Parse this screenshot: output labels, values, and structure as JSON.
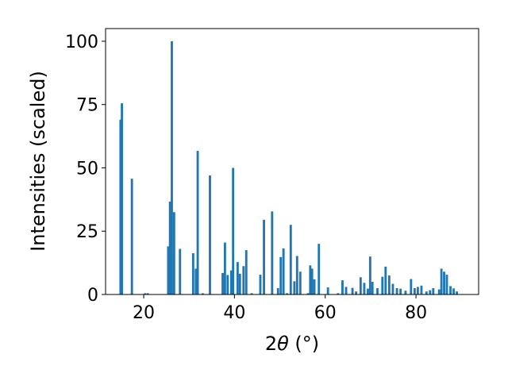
{
  "chart_data": {
    "type": "bar",
    "xlabel_prefix": "2",
    "xlabel_symbol": "θ",
    "xlabel_suffix": " (°)",
    "ylabel": "Intensities (scaled)",
    "xlim": [
      11.6,
      93.8
    ],
    "ylim": [
      0,
      105
    ],
    "x_ticks": [
      20,
      40,
      60,
      80
    ],
    "y_ticks": [
      0,
      25,
      50,
      75,
      100
    ],
    "bar_color": "#1f77b4",
    "bar_width": 0.5,
    "x": [
      14.9,
      15.2,
      17.4,
      20.3,
      20.9,
      25.4,
      25.8,
      26.2,
      26.7,
      28.0,
      30.9,
      31.5,
      31.9,
      33.0,
      34.6,
      37.4,
      37.9,
      38.5,
      39.3,
      39.7,
      40.7,
      41.2,
      42.0,
      42.6,
      43.8,
      45.7,
      46.5,
      48.3,
      49.6,
      50.2,
      50.8,
      51.6,
      52.4,
      53.2,
      53.8,
      54.5,
      56.2,
      56.7,
      57.1,
      57.6,
      58.6,
      60.6,
      62.8,
      63.8,
      64.6,
      66.0,
      66.8,
      67.8,
      68.6,
      69.4,
      69.9,
      70.4,
      71.5,
      72.6,
      73.3,
      74.1,
      74.9,
      75.8,
      76.6,
      77.7,
      78.9,
      79.7,
      80.4,
      81.2,
      82.3,
      83.1,
      83.8,
      85.1,
      85.6,
      86.2,
      86.8,
      87.6,
      88.3,
      89.0
    ],
    "values": [
      69,
      75.5,
      45.7,
      0.5,
      0.5,
      19,
      36.7,
      100,
      32.5,
      18,
      16.3,
      10.2,
      56.7,
      0.5,
      47,
      8.5,
      20.5,
      7.7,
      9.5,
      50,
      12.8,
      8.2,
      11.2,
      17.5,
      0.5,
      7.8,
      29.5,
      32.8,
      2.5,
      14.8,
      18.2,
      0.5,
      27.5,
      5.2,
      15.2,
      9.0,
      0.5,
      11.5,
      10.2,
      6.0,
      20.0,
      2.8,
      0.5,
      5.6,
      3.0,
      2.6,
      1.2,
      6.8,
      4.6,
      2.3,
      15.0,
      5.0,
      2.5,
      7.0,
      11.0,
      7.5,
      4.2,
      2.5,
      2.3,
      1.5,
      6.1,
      2.5,
      3.0,
      3.5,
      1.2,
      1.7,
      2.5,
      2.0,
      10.2,
      9.0,
      7.8,
      3.3,
      2.4,
      1.2
    ]
  }
}
